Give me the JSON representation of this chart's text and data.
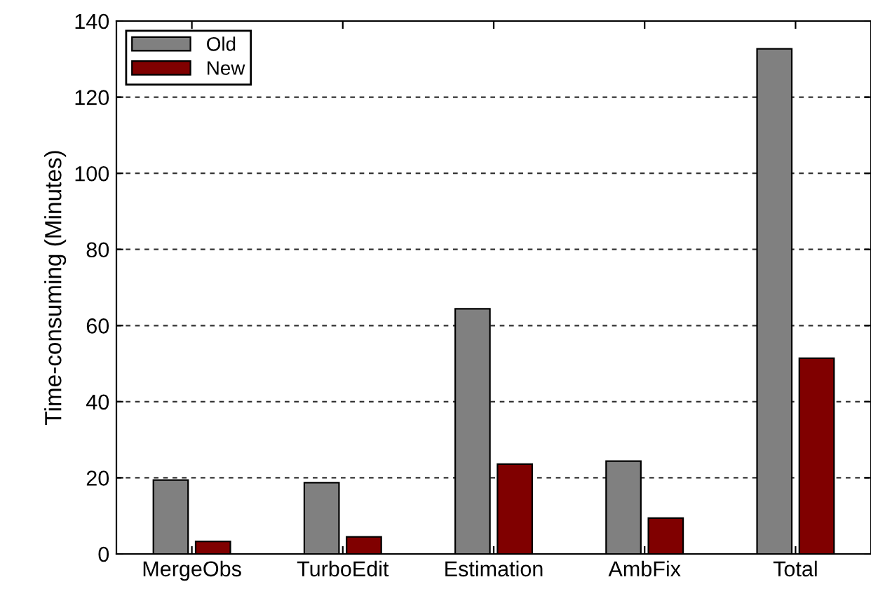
{
  "chart_data": {
    "type": "bar",
    "ylabel": "Time-consuming (Minutes)",
    "categories": [
      "MergeObs",
      "TurboEdit",
      "Estimation",
      "AmbFix",
      "Total"
    ],
    "series": [
      {
        "name": "Old",
        "color": "#808080",
        "values": [
          19.4,
          18.7,
          64.4,
          24.4,
          132.7
        ]
      },
      {
        "name": "New",
        "color": "#800000",
        "values": [
          3.3,
          4.5,
          23.6,
          9.4,
          51.4
        ]
      }
    ],
    "ylim": [
      0,
      140
    ],
    "yticks": [
      0,
      20,
      40,
      60,
      80,
      100,
      120,
      140
    ],
    "grid": "y",
    "legend": "top left"
  }
}
